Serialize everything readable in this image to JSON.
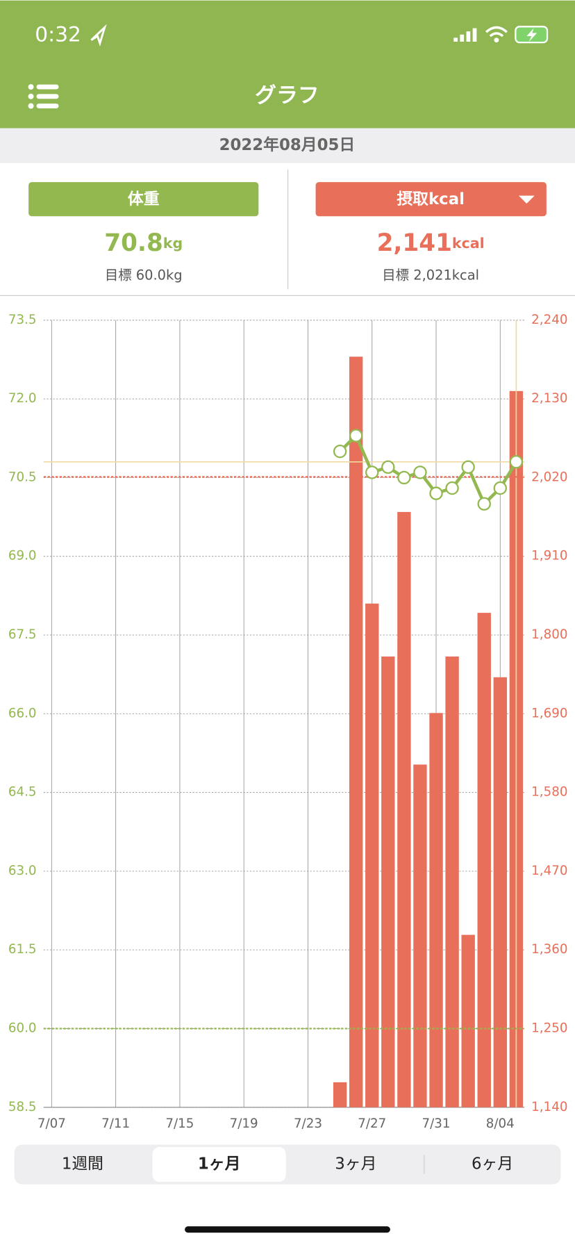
{
  "status_bar": {
    "time": "0:32"
  },
  "header": {
    "title": "グラフ"
  },
  "date": "2022年08月05日",
  "summary": {
    "weight": {
      "value": "70.8",
      "unit": "kg",
      "target": "目標 60.0kg"
    },
    "kcal": {
      "value": "2,141",
      "unit": "kcal",
      "target": "目標 2,021kcal"
    }
  },
  "chart_data": {
    "type": "bar-line",
    "categories": [
      "7/07",
      null,
      null,
      null,
      "7/11",
      null,
      null,
      null,
      "7/15",
      null,
      null,
      null,
      "7/19",
      null,
      null,
      null,
      "7/23",
      null,
      null,
      null,
      "7/27",
      null,
      null,
      null,
      "7/31",
      null,
      null,
      null,
      "8/04",
      null
    ],
    "series": [
      {
        "name": "体重",
        "color": "#93b84f",
        "type": "line",
        "axis": "y",
        "values": [
          null,
          null,
          null,
          null,
          null,
          null,
          null,
          null,
          null,
          null,
          null,
          null,
          null,
          null,
          null,
          null,
          null,
          null,
          71.0,
          71.3,
          70.6,
          70.7,
          70.5,
          70.6,
          70.2,
          70.3,
          70.7,
          70.0,
          70.3,
          70.8
        ]
      },
      {
        "name": "摂取kcal",
        "color": "#e8705a",
        "type": "bar",
        "axis": "y2",
        "values": [
          null,
          null,
          null,
          null,
          null,
          null,
          null,
          null,
          null,
          null,
          null,
          null,
          null,
          null,
          null,
          null,
          null,
          null,
          1175,
          2189,
          1844,
          1770,
          1972,
          1619,
          1691,
          1770,
          1381,
          1831,
          1741,
          2141
        ]
      }
    ],
    "ylim": [
      58.5,
      73.5
    ],
    "yticks": [
      58.5,
      {
        "value": 60,
        "label": "60.0"
      },
      61.5,
      {
        "value": 63,
        "label": "63.0"
      },
      64.5,
      {
        "value": 66,
        "label": "66.0"
      },
      67.5,
      {
        "value": 69,
        "label": "69.0"
      },
      70.5,
      {
        "value": 72,
        "label": "72.0"
      },
      73.5
    ],
    "y2lim": [
      1140,
      2240
    ],
    "y2ticks": [
      {
        "value": 1140,
        "label": "1,140"
      },
      {
        "value": 1250,
        "label": "1,250"
      },
      {
        "value": 1360,
        "label": "1,360"
      },
      {
        "value": 1470,
        "label": "1,470"
      },
      {
        "value": 1580,
        "label": "1,580"
      },
      {
        "value": 1690,
        "label": "1,690"
      },
      {
        "value": 1800,
        "label": "1,800"
      },
      {
        "value": 1910,
        "label": "1,910"
      },
      {
        "value": 2020,
        "label": "2,020"
      },
      {
        "value": 2130,
        "label": "2,130"
      },
      {
        "value": 2240,
        "label": "2,240"
      }
    ],
    "targets": {
      "weight": 60.0,
      "kcal": 2021
    },
    "grid": true
  },
  "tabs": [
    "1週間",
    "1ヶ月",
    "3ヶ月",
    "6ヶ月"
  ],
  "selected_tab": 1
}
